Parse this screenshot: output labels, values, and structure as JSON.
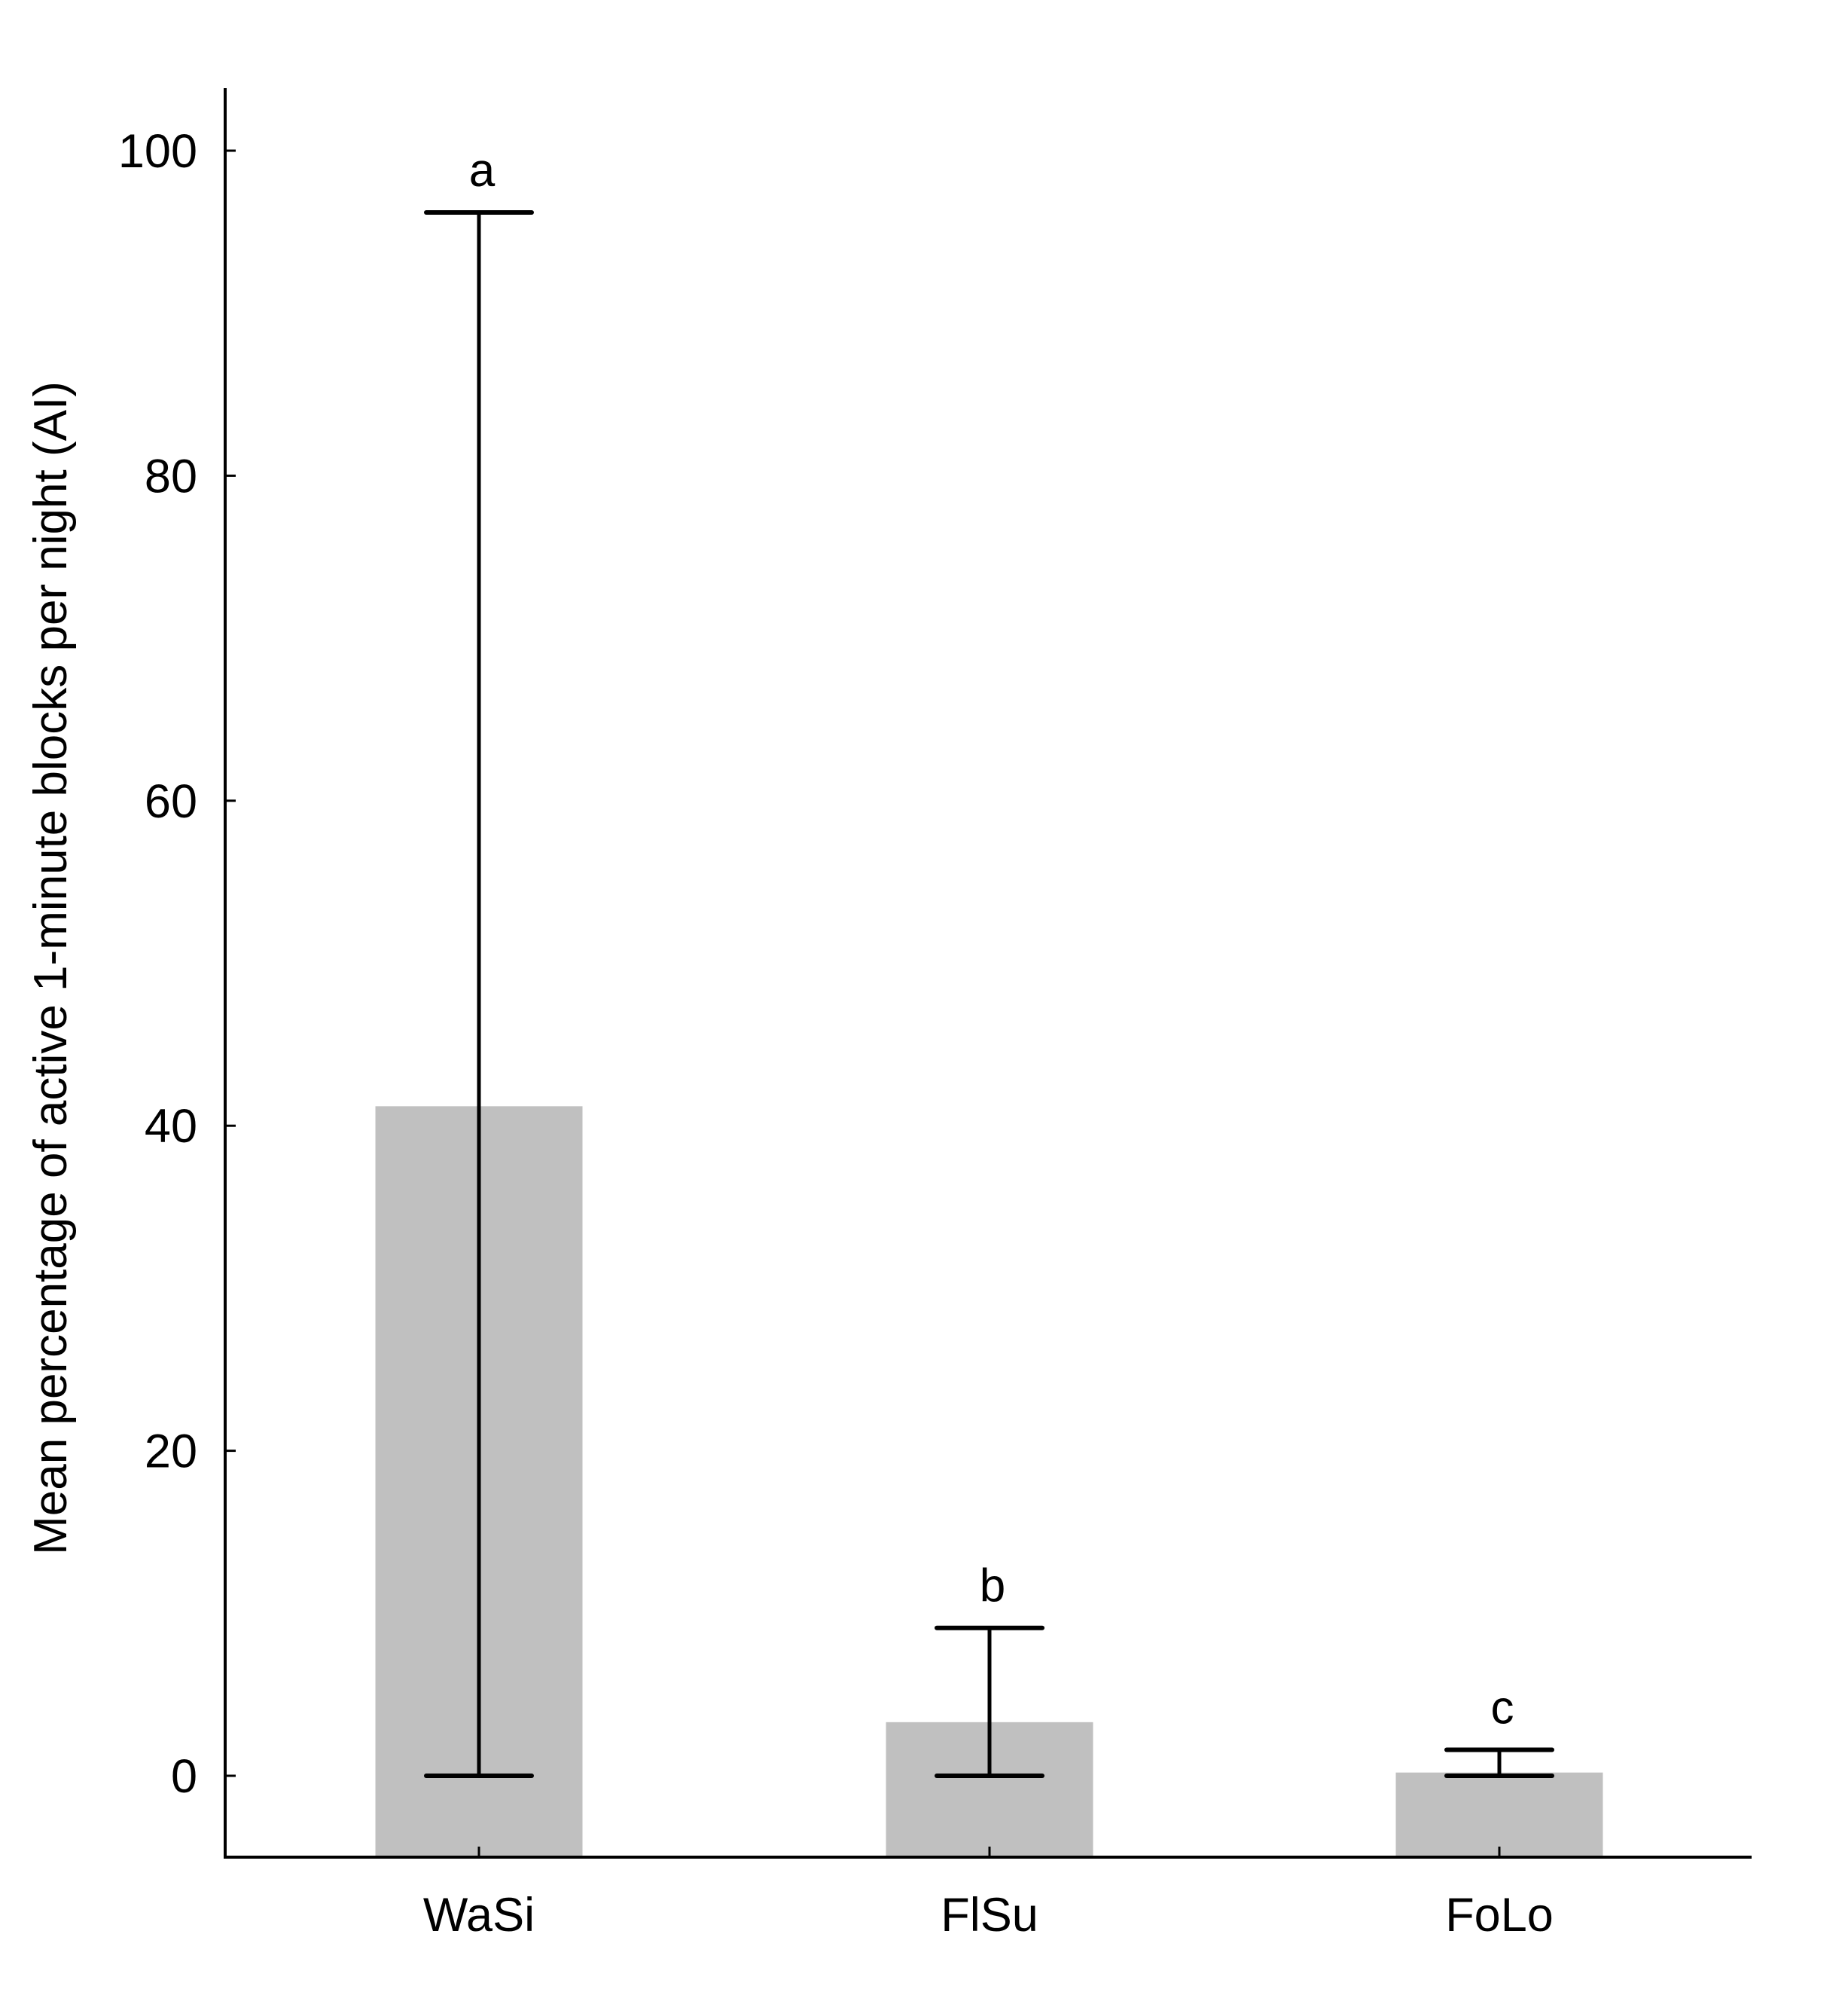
{
  "chart_data": {
    "type": "bar",
    "title": "",
    "xlabel": "",
    "ylabel": "Mean percentage of active 1-minute blocks per night (AI)",
    "categories": [
      "WaSi",
      "FlSu",
      "FoLo"
    ],
    "values": [
      41.2,
      3.3,
      0.2
    ],
    "error_upper": [
      96.2,
      9.1,
      1.6
    ],
    "error_lower": [
      0,
      0,
      0
    ],
    "significance_letters": [
      "a",
      "b",
      "c"
    ],
    "ylim": [
      -5,
      104
    ],
    "yticks": [
      0,
      20,
      40,
      60,
      80,
      100
    ],
    "grid": false,
    "bar_color": "#c0c0c0",
    "line_color": "#000000"
  }
}
